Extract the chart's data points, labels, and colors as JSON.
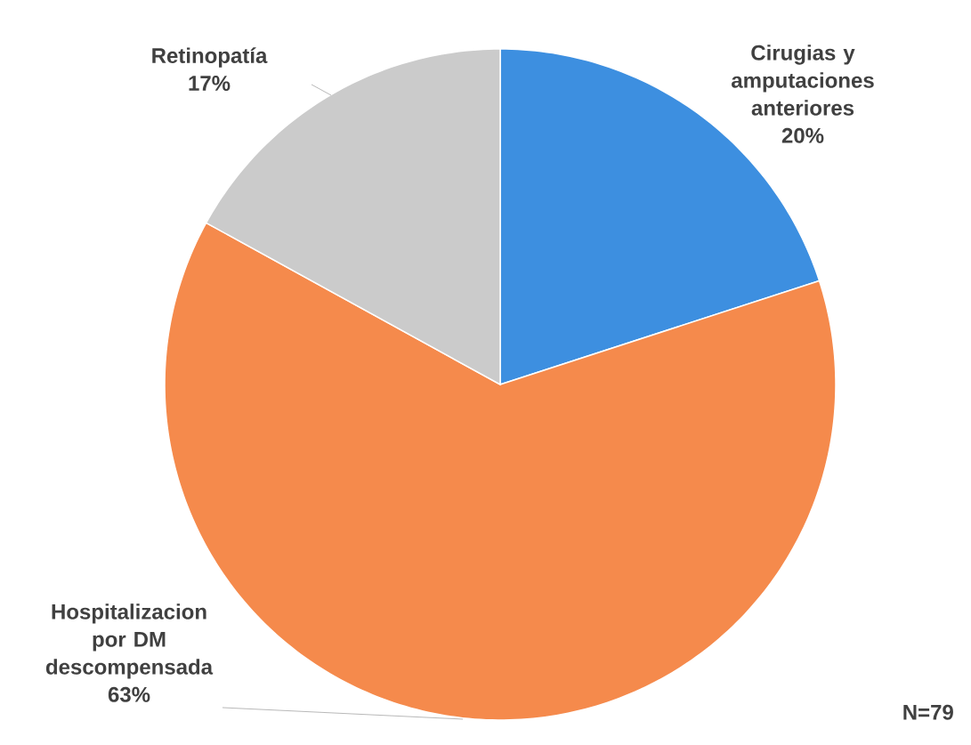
{
  "chart_data": {
    "type": "pie",
    "categories": [
      "Cirugias y amputaciones anteriores",
      "Hospitalizacion por DM descompensada",
      "Retinopatía"
    ],
    "values": [
      20,
      63,
      17
    ],
    "value_labels": [
      "20%",
      "63%",
      "17%"
    ],
    "colors": [
      "#3d8fe0",
      "#f58a4c",
      "#cbcbcb"
    ],
    "annotations": [
      "N=79"
    ]
  }
}
